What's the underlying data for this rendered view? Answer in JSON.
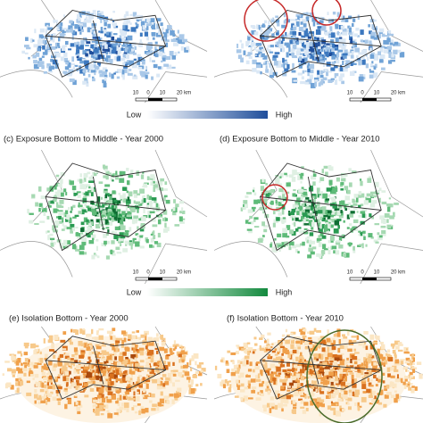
{
  "legends": {
    "blue": {
      "low": "Low",
      "high": "High"
    },
    "green": {
      "low": "Low",
      "high": "High"
    }
  },
  "titles": {
    "c": "(c) Exposure Bottom to Middle - Year 2000",
    "d": "(d) Exposure Bottom to Middle - Year 2010",
    "e": "(e) Isolation Bottom - Year 2000",
    "f": "(f) Isolation Bottom - Year 2010"
  },
  "scale_labels": [
    "10",
    "0",
    "10",
    "20 km"
  ]
}
